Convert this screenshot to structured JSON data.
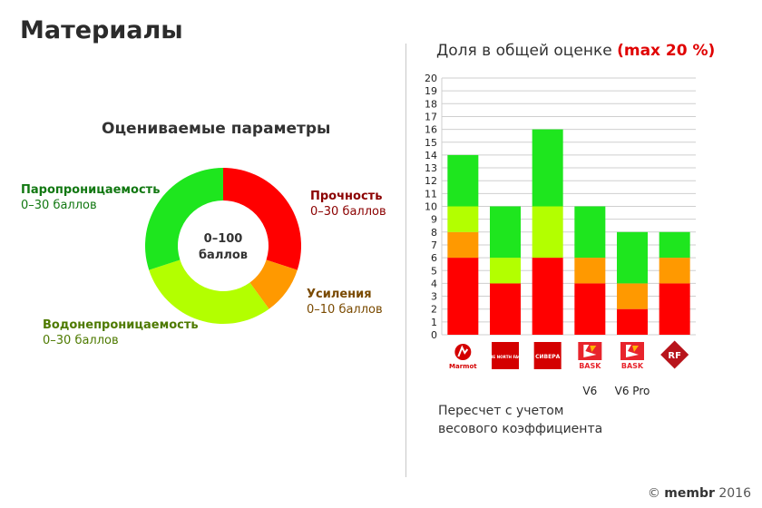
{
  "page_title": "Материалы",
  "donut": {
    "title": "Оцениваемые параметры",
    "center_line1": "0–100",
    "center_line2": "баллов",
    "segments": [
      {
        "name": "Прочность",
        "range": "0–30 баллов",
        "value": 30,
        "color": "#ff0000",
        "label_color": "#8b0000"
      },
      {
        "name": "Усиления",
        "range": "0–10 баллов",
        "value": 10,
        "color": "#ff9900",
        "label_color": "#7a4a00"
      },
      {
        "name": "Водонепроницаемость",
        "range": "0–30 баллов",
        "value": 30,
        "color": "#b3ff00",
        "label_color": "#4e7a00"
      },
      {
        "name": "Паропроницаемость",
        "range": "0–30 баллов",
        "value": 30,
        "color": "#1ee61e",
        "label_color": "#127812"
      }
    ]
  },
  "bar_title": {
    "text": "Доля в общей оценке ",
    "highlight": "(max 20 %)"
  },
  "chart_data": {
    "type": "bar",
    "stacked": true,
    "title": "Доля в общей оценке (max 20 %)",
    "ylim": [
      0,
      20
    ],
    "yticks": [
      0,
      1,
      2,
      3,
      4,
      5,
      6,
      7,
      8,
      9,
      10,
      11,
      12,
      13,
      14,
      15,
      16,
      17,
      18,
      19,
      20
    ],
    "grid": true,
    "categories": [
      "Marmot",
      "The North Face",
      "Sivera",
      "Bask V6",
      "Bask V6 Pro",
      "Red Fox"
    ],
    "brand_marks": [
      "Marmot",
      "THE NORTH FACE",
      "СИВЕРА",
      "BASK",
      "BASK",
      "RF"
    ],
    "category_labels": [
      "",
      "",
      "",
      "V6",
      "V6 Pro",
      ""
    ],
    "series": [
      {
        "name": "Прочность",
        "color": "#ff0000",
        "values": [
          6,
          4,
          6,
          4,
          2,
          4
        ]
      },
      {
        "name": "Усиления",
        "color": "#ff9900",
        "values": [
          2,
          0,
          0,
          2,
          2,
          2
        ]
      },
      {
        "name": "Водонепроницаемость",
        "color": "#b3ff00",
        "values": [
          2,
          2,
          4,
          0,
          0,
          0
        ]
      },
      {
        "name": "Паропроницаемость",
        "color": "#1ee61e",
        "values": [
          4,
          4,
          6,
          4,
          4,
          2
        ]
      }
    ]
  },
  "note": "Пересчет с учетом весового коэффициента",
  "copyright": {
    "symbol": "©",
    "brand": "membr",
    "year": "2016"
  }
}
